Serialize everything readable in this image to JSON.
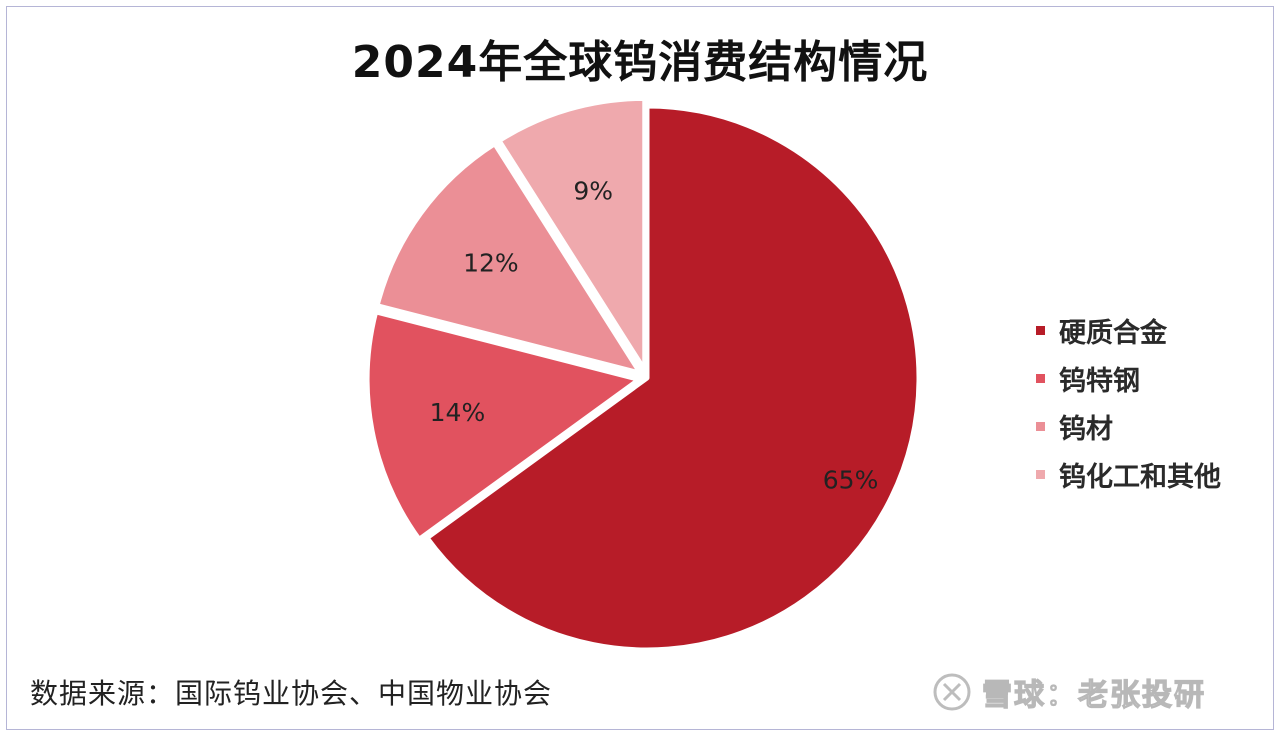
{
  "chart_data": {
    "type": "pie",
    "title": "2024年全球钨消费结构情况",
    "categories": [
      "硬质合金",
      "钨特钢",
      "钨材",
      "钨化工和其他"
    ],
    "values": [
      65,
      14,
      12,
      9
    ],
    "data_labels": [
      "65%",
      "14%",
      "12%",
      "9%"
    ],
    "colors": [
      "#b71c28",
      "#e1525f",
      "#eb8f96",
      "#efa9ad"
    ],
    "legend_position": "right",
    "start_angle": "top, clockwise"
  },
  "footer": {
    "source": "数据来源：国际钨业协会、中国物业协会",
    "watermark_text": "雪球：老张投研",
    "watermark_icon": "snowball-logo-icon"
  }
}
